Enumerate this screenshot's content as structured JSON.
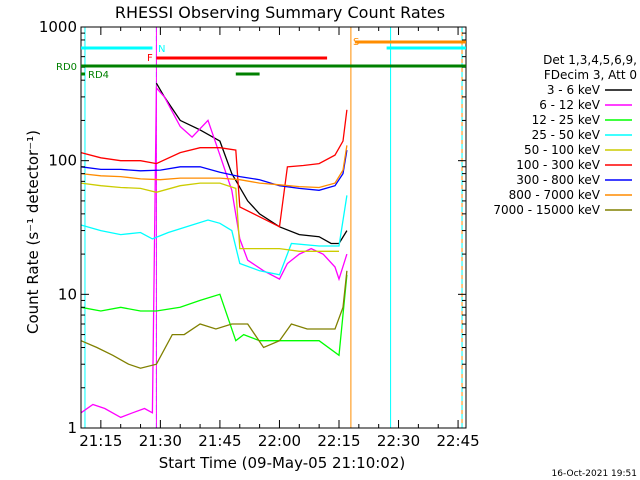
{
  "chart_data": {
    "type": "line",
    "title": "RHESSI Observing Summary Count Rates",
    "xlabel": "Start Time (09-May-05 21:10:02)",
    "ylabel": "Count Rate (s⁻¹ detector⁻¹)",
    "y_scale": "log",
    "ylim": [
      1,
      1000
    ],
    "xlim": [
      "21:10",
      "22:47"
    ],
    "x_ticks": [
      "21:15",
      "21:30",
      "21:45",
      "22:00",
      "22:15",
      "22:30",
      "22:45"
    ],
    "y_ticks": [
      "1",
      "10",
      "100",
      "1000"
    ],
    "legend_header": [
      "Det 1,3,4,5,6,9,",
      "FDecim 3, Att 0"
    ],
    "legend_placement": "right",
    "footer_date": "16-Oct-2021 19:51",
    "series": [
      {
        "name": "3 - 6 keV",
        "color": "#000000",
        "x": [
          "21:29",
          "21:31",
          "21:35",
          "21:40",
          "21:45",
          "21:48",
          "21:52",
          "21:55",
          "22:00",
          "22:05",
          "22:10",
          "22:13",
          "22:15",
          "22:17"
        ],
        "values": [
          380,
          300,
          200,
          170,
          140,
          80,
          50,
          40,
          32,
          28,
          27,
          24,
          24,
          30
        ]
      },
      {
        "name": "6 - 12 keV",
        "color": "#ff00ff",
        "x": [
          "21:10",
          "21:13",
          "21:16",
          "21:20",
          "21:23",
          "21:26",
          "21:28",
          "21:29",
          "21:31",
          "21:35",
          "21:38",
          "21:42",
          "21:45",
          "21:48",
          "21:50",
          "21:52",
          "21:56",
          "22:00",
          "22:02",
          "22:05",
          "22:08",
          "22:11",
          "22:14",
          "22:15",
          "22:17"
        ],
        "values": [
          1.3,
          1.5,
          1.4,
          1.2,
          1.3,
          1.4,
          1.3,
          350,
          300,
          180,
          150,
          200,
          110,
          60,
          26,
          18,
          15,
          13,
          17,
          20,
          22,
          20,
          16,
          13,
          20
        ]
      },
      {
        "name": "12 - 25 keV",
        "color": "#00ff00",
        "x": [
          "21:10",
          "21:15",
          "21:20",
          "21:25",
          "21:29",
          "21:35",
          "21:40",
          "21:45",
          "21:49",
          "21:51",
          "21:55",
          "22:00",
          "22:05",
          "22:10",
          "22:15",
          "22:17"
        ],
        "values": [
          8,
          7.5,
          8,
          7.5,
          7.5,
          8,
          9,
          10,
          4.5,
          5,
          4.5,
          4.5,
          4.5,
          4.5,
          3.5,
          14
        ]
      },
      {
        "name": "25 - 50 keV",
        "color": "#00ffff",
        "x": [
          "21:10",
          "21:15",
          "21:20",
          "21:25",
          "21:28",
          "21:32",
          "21:38",
          "21:42",
          "21:45",
          "21:48",
          "21:50",
          "21:55",
          "22:00",
          "22:03",
          "22:10",
          "22:15",
          "22:17"
        ],
        "values": [
          33,
          30,
          28,
          29,
          26,
          29,
          33,
          36,
          34,
          30,
          17,
          15,
          14,
          24,
          23,
          23,
          55
        ]
      },
      {
        "name": "50 - 100 keV",
        "color": "#cccc00",
        "x": [
          "21:10",
          "21:15",
          "21:20",
          "21:25",
          "21:29",
          "21:35",
          "21:40",
          "21:45",
          "21:49",
          "21:50",
          "21:55",
          "22:00",
          "22:05",
          "22:10",
          "22:15"
        ],
        "values": [
          68,
          65,
          63,
          62,
          58,
          65,
          68,
          68,
          62,
          22,
          22,
          22,
          21,
          21,
          21
        ]
      },
      {
        "name": "100 - 300 keV",
        "color": "#ff0000",
        "x": [
          "21:10",
          "21:15",
          "21:20",
          "21:25",
          "21:29",
          "21:35",
          "21:40",
          "21:45",
          "21:49",
          "21:50",
          "21:55",
          "22:00",
          "22:02",
          "22:06",
          "22:10",
          "22:14",
          "22:16",
          "22:17"
        ],
        "values": [
          115,
          105,
          100,
          100,
          95,
          115,
          125,
          125,
          120,
          45,
          38,
          32,
          90,
          92,
          95,
          110,
          140,
          240
        ]
      },
      {
        "name": "300 - 800 keV",
        "color": "#0000ff",
        "x": [
          "21:10",
          "21:15",
          "21:20",
          "21:25",
          "21:30",
          "21:35",
          "21:40",
          "21:45",
          "21:50",
          "21:55",
          "22:00",
          "22:05",
          "22:10",
          "22:14",
          "22:16",
          "22:17"
        ],
        "values": [
          90,
          86,
          86,
          84,
          85,
          90,
          90,
          82,
          76,
          72,
          65,
          62,
          60,
          65,
          80,
          120
        ]
      },
      {
        "name": "800 - 7000 keV",
        "color": "#ff8c00",
        "x": [
          "21:10",
          "21:15",
          "21:20",
          "21:25",
          "21:30",
          "21:35",
          "21:40",
          "21:45",
          "21:50",
          "21:55",
          "22:00",
          "22:05",
          "22:10",
          "22:14",
          "22:16",
          "22:17"
        ],
        "values": [
          80,
          77,
          76,
          73,
          72,
          74,
          74,
          74,
          72,
          68,
          66,
          64,
          63,
          68,
          85,
          130
        ]
      },
      {
        "name": "7000 - 15000 keV",
        "color": "#808000",
        "x": [
          "21:10",
          "21:14",
          "21:18",
          "21:22",
          "21:25",
          "21:29",
          "21:33",
          "21:36",
          "21:40",
          "21:44",
          "21:48",
          "21:52",
          "21:56",
          "22:00",
          "22:03",
          "22:07",
          "22:10",
          "22:14",
          "22:16",
          "22:17"
        ],
        "values": [
          4.5,
          4,
          3.5,
          3,
          2.8,
          3,
          5,
          5,
          6,
          5.5,
          6,
          6,
          4,
          4.5,
          6,
          5.5,
          5.5,
          5.5,
          8,
          15
        ]
      }
    ],
    "flag_bars": [
      {
        "label": "N",
        "color": "#00ffff",
        "segments": [
          [
            "21:10",
            "21:28"
          ],
          [
            "22:27",
            "22:47"
          ]
        ]
      },
      {
        "label": "F",
        "color": "#ff0000",
        "segments": [
          [
            "21:29",
            "22:12"
          ]
        ]
      },
      {
        "label": "S",
        "color": "#ff8c00",
        "segments": [
          [
            "22:19",
            "22:47"
          ]
        ]
      },
      {
        "label": "RD0",
        "color": "#008000",
        "segments": [
          [
            "21:10",
            "22:47"
          ]
        ]
      },
      {
        "label": "RD4",
        "color": "#008000",
        "segments": [
          [
            "21:10",
            "21:11"
          ],
          [
            "21:49",
            "21:55"
          ]
        ]
      }
    ],
    "vertical_markers": [
      {
        "time": "21:11",
        "color": "#00ffff",
        "style": "solid"
      },
      {
        "time": "21:29",
        "color": "#00ffff",
        "style": "dashed"
      },
      {
        "time": "21:29",
        "color": "#ff00ff",
        "style": "solid"
      },
      {
        "time": "22:18",
        "color": "#ff8c00",
        "style": "solid"
      },
      {
        "time": "22:28",
        "color": "#00ffff",
        "style": "solid"
      },
      {
        "time": "22:46",
        "color": "#ff8c00",
        "style": "solid"
      },
      {
        "time": "22:46",
        "color": "#00ffff",
        "style": "dashed"
      }
    ]
  }
}
